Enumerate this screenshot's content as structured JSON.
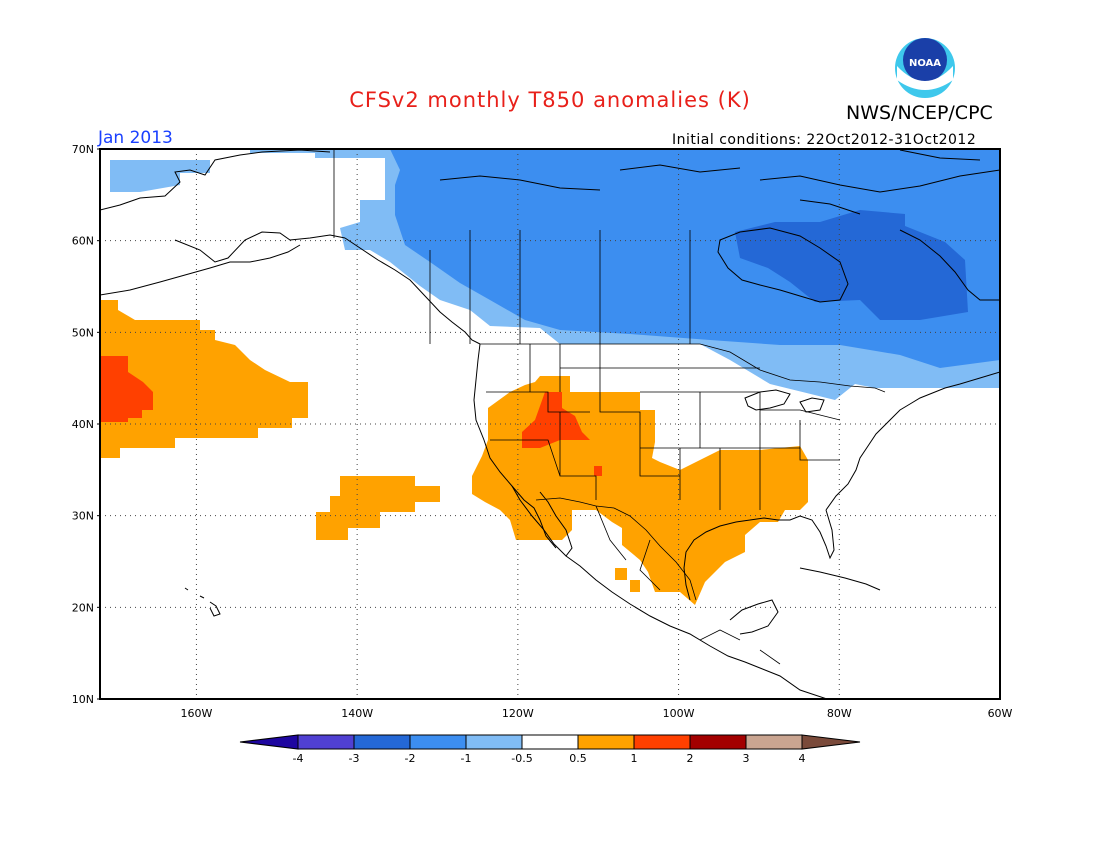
{
  "header": {
    "title": "CFSv2 monthly T850 anomalies (K)",
    "agency": "NWS/NCEP/CPC",
    "logo_text": "NOAA",
    "period": "Jan 2013",
    "initial_conditions": "Initial conditions: 22Oct2012-31Oct2012"
  },
  "map": {
    "projection": "cylindrical equidistant",
    "lon_range": [
      -172,
      -60
    ],
    "lat_range": [
      10,
      70
    ],
    "lat_ticks": [
      10,
      20,
      30,
      40,
      50,
      60,
      70
    ],
    "lat_tick_labels": [
      "10N",
      "20N",
      "30N",
      "40N",
      "50N",
      "60N",
      "70N"
    ],
    "lon_ticks": [
      -160,
      -140,
      -120,
      -100,
      -80,
      -60
    ],
    "lon_tick_labels": [
      "160W",
      "140W",
      "120W",
      "100W",
      "80W",
      "60W"
    ],
    "gridlines": "dotted",
    "anomaly_regions": [
      {
        "label": "-2 to -1 K",
        "color": "#3c8ef0"
      },
      {
        "label": "-3 to -2 K",
        "color": "#2468d6"
      },
      {
        "label": "-1 to -0.5 K",
        "color": "#80bcf5"
      },
      {
        "label": "0.5 to 1 K",
        "color": "#ffa200"
      },
      {
        "label": "1 to 2 K",
        "color": "#ff4000"
      }
    ]
  },
  "colorbar": {
    "labels": [
      "-4",
      "-3",
      "-2",
      "-1",
      "-0.5",
      "0.5",
      "1",
      "2",
      "3",
      "4"
    ],
    "colors": [
      "#1e06a0",
      "#5040d2",
      "#2468d6",
      "#3c8ef0",
      "#80bcf5",
      "#ffffff",
      "#ffa200",
      "#ff4000",
      "#a30000",
      "#caa591",
      "#7a4a3a"
    ]
  }
}
